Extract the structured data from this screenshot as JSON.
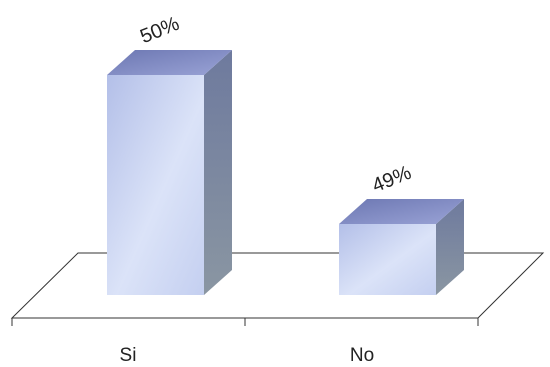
{
  "chart_data": {
    "type": "bar",
    "style": "3d",
    "categories": [
      "Si",
      "No"
    ],
    "values": [
      50,
      49
    ],
    "data_labels": [
      "50%",
      "49%"
    ],
    "title": "",
    "xlabel": "",
    "ylabel": "",
    "grid": false,
    "legend": "none",
    "colors": {
      "front": "#c4cff0",
      "top": "#7f8ac0",
      "side": "#79879a",
      "floor": "#333333"
    }
  }
}
